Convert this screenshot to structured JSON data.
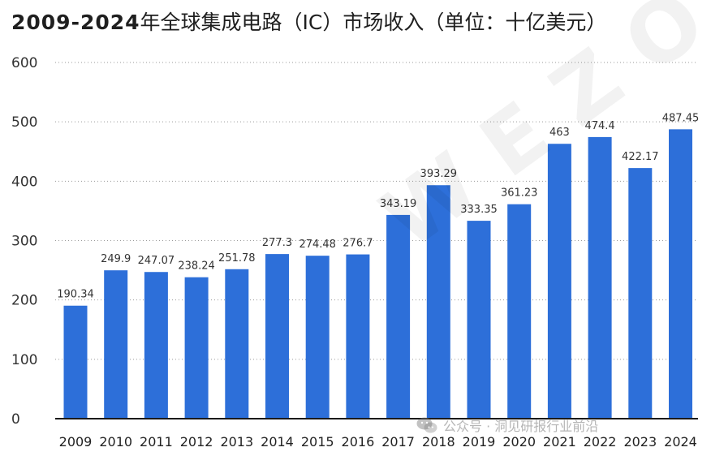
{
  "chart_data": {
    "type": "bar",
    "title_prefix": "2009-2024",
    "title_suffix": "年全球集成电路（IC）市场收入（单位：十亿美元）",
    "categories": [
      "2009",
      "2010",
      "2011",
      "2012",
      "2013",
      "2014",
      "2015",
      "2016",
      "2017",
      "2018",
      "2019",
      "2020",
      "2021",
      "2022",
      "2023",
      "2024"
    ],
    "values": [
      190.34,
      249.9,
      247.07,
      238.24,
      251.78,
      277.3,
      274.48,
      276.7,
      343.19,
      393.29,
      333.35,
      361.23,
      463,
      474.4,
      422.17,
      487.45
    ],
    "value_labels": [
      "190.34",
      "249.9",
      "247.07",
      "238.24",
      "251.78",
      "277.3",
      "274.48",
      "276.7",
      "343.19",
      "393.29",
      "333.35",
      "361.23",
      "463",
      "474.4",
      "422.17",
      "487.45"
    ],
    "ylim": [
      0,
      600
    ],
    "yticks": [
      0,
      100,
      200,
      300,
      400,
      500,
      600
    ],
    "ytick_labels": [
      "0",
      "100",
      "200",
      "300",
      "400",
      "500",
      "600"
    ],
    "xlabel": "",
    "ylabel": "",
    "grid": true,
    "bar_color": "#2d6fd9"
  },
  "watermark": {
    "text": "WEZO",
    "source": "公众号 · 洞见研报行业前沿"
  }
}
